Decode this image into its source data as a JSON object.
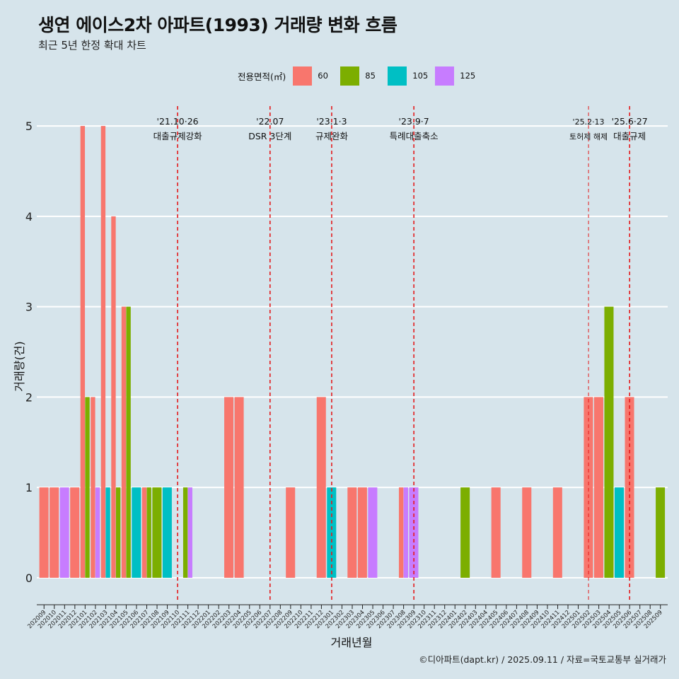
{
  "title": "생연 에이스2차 아파트(1993) 거래량 변화 흐름",
  "subtitle": "최근 5년 한정 확대 차트",
  "caption": "©디아파트(dapt.kr) / 2025.09.11 / 자료=국토교통부 실거래가",
  "legend": {
    "title": "전용면적(㎡)",
    "items": [
      {
        "label": "60",
        "color": "#f8766d"
      },
      {
        "label": "85",
        "color": "#7cae00"
      },
      {
        "label": "105",
        "color": "#00bfc4"
      },
      {
        "label": "125",
        "color": "#c77cff"
      }
    ]
  },
  "chart_data": {
    "type": "bar",
    "xlabel": "거래년월",
    "ylabel": "거래량(건)",
    "ylim": [
      -0.22,
      5.22
    ],
    "yticks": [
      0,
      1,
      2,
      3,
      4,
      5
    ],
    "grid": true,
    "legend_position": "top",
    "categories": [
      "202009",
      "202010",
      "202011",
      "202012",
      "202101",
      "202102",
      "202103",
      "202104",
      "202105",
      "202106",
      "202107",
      "202108",
      "202109",
      "202110",
      "202111",
      "202112",
      "202201",
      "202202",
      "202203",
      "202204",
      "202205",
      "202206",
      "202207",
      "202208",
      "202209",
      "202210",
      "202211",
      "202212",
      "202301",
      "202302",
      "202303",
      "202304",
      "202305",
      "202306",
      "202307",
      "202308",
      "202309",
      "202310",
      "202311",
      "202312",
      "202401",
      "202402",
      "202403",
      "202404",
      "202405",
      "202406",
      "202407",
      "202408",
      "202409",
      "202410",
      "202411",
      "202412",
      "202501",
      "202502",
      "202503",
      "202504",
      "202505",
      "202506",
      "202507",
      "202508",
      "202509"
    ],
    "series": [
      {
        "name": "60",
        "color": "#f8766d",
        "values": [
          1,
          1,
          0,
          1,
          5,
          2,
          5,
          4,
          3,
          0,
          1,
          0,
          0,
          0,
          0,
          0,
          0,
          0,
          2,
          2,
          0,
          0,
          0,
          0,
          1,
          0,
          0,
          2,
          0,
          0,
          1,
          1,
          0,
          0,
          0,
          1,
          0,
          0,
          0,
          0,
          0,
          0,
          0,
          0,
          1,
          0,
          0,
          1,
          0,
          0,
          1,
          0,
          0,
          2,
          2,
          0,
          0,
          2,
          0,
          0,
          0
        ]
      },
      {
        "name": "85",
        "color": "#7cae00",
        "values": [
          0,
          0,
          0,
          0,
          2,
          0,
          0,
          1,
          3,
          0,
          1,
          1,
          0,
          0,
          1,
          0,
          0,
          0,
          0,
          0,
          0,
          0,
          0,
          0,
          0,
          0,
          0,
          0,
          0,
          0,
          0,
          0,
          0,
          0,
          0,
          0,
          0,
          0,
          0,
          0,
          0,
          1,
          0,
          0,
          0,
          0,
          0,
          0,
          0,
          0,
          0,
          0,
          0,
          0,
          0,
          3,
          0,
          0,
          0,
          0,
          1
        ]
      },
      {
        "name": "105",
        "color": "#00bfc4",
        "values": [
          0,
          0,
          0,
          0,
          0,
          0,
          1,
          0,
          0,
          1,
          0,
          0,
          1,
          0,
          0,
          0,
          0,
          0,
          0,
          0,
          0,
          0,
          0,
          0,
          0,
          0,
          0,
          0,
          1,
          0,
          0,
          0,
          0,
          0,
          0,
          0,
          0,
          0,
          0,
          0,
          0,
          0,
          0,
          0,
          0,
          0,
          0,
          0,
          0,
          0,
          0,
          0,
          0,
          0,
          0,
          0,
          1,
          0,
          0,
          0,
          0
        ]
      },
      {
        "name": "125",
        "color": "#c77cff",
        "values": [
          0,
          0,
          1,
          0,
          0,
          1,
          0,
          0,
          0,
          0,
          0,
          0,
          0,
          0,
          1,
          0,
          0,
          0,
          0,
          0,
          0,
          0,
          0,
          0,
          0,
          0,
          0,
          0,
          0,
          0,
          0,
          0,
          1,
          0,
          0,
          1,
          1,
          0,
          0,
          0,
          0,
          0,
          0,
          0,
          0,
          0,
          0,
          0,
          0,
          0,
          0,
          0,
          0,
          0,
          0,
          0,
          0,
          0,
          0,
          0,
          0
        ]
      }
    ],
    "annotations": [
      {
        "month": "202110",
        "date": "'21.10·26",
        "text": "대출규제강화"
      },
      {
        "month": "202207",
        "date": "'22.07",
        "text": "DSR 3단계"
      },
      {
        "month": "202301",
        "date": "'23.1·3",
        "text": "규제완화"
      },
      {
        "month": "202309",
        "date": "'23.9·7",
        "text": "특례대출축소"
      },
      {
        "month": "202502",
        "date": "'25.2·13",
        "text": "토허제 해제"
      },
      {
        "month": "202506",
        "date": "'25.6·27",
        "text": "대출규제"
      }
    ]
  }
}
